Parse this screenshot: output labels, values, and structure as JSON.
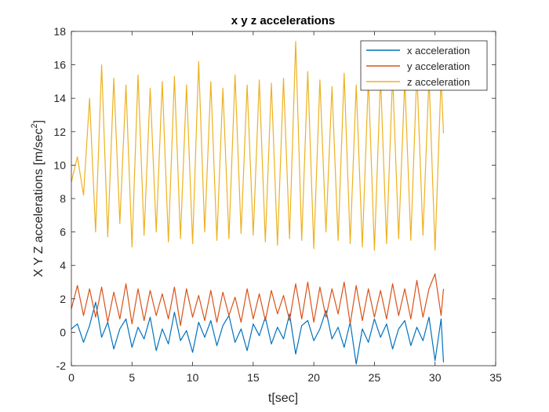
{
  "chart_data": {
    "type": "line",
    "title": "x y z accelerations",
    "xlabel": "t[sec]",
    "ylabel_main": "X  Y  Z  accelerations  [m/sec",
    "ylabel_sup": "2",
    "ylabel_close": "]",
    "xlim": [
      0,
      35
    ],
    "ylim": [
      -2,
      18
    ],
    "xticks": [
      "0",
      "5",
      "10",
      "15",
      "20",
      "25",
      "30",
      "35"
    ],
    "yticks": [
      "-2",
      "0",
      "2",
      "4",
      "6",
      "8",
      "10",
      "12",
      "14",
      "16",
      "18"
    ],
    "grid": false,
    "legend_position": "top-right",
    "t_end": 30.7,
    "series": [
      {
        "name": "x acceleration",
        "color": "#0072BD",
        "x": [
          0,
          0.5,
          1,
          1.5,
          2,
          2.5,
          3,
          3.5,
          4,
          4.5,
          5,
          5.5,
          6,
          6.5,
          7,
          7.5,
          8,
          8.5,
          9,
          9.5,
          10,
          10.5,
          11,
          11.5,
          12,
          12.5,
          13,
          13.5,
          14,
          14.5,
          15,
          15.5,
          16,
          16.5,
          17,
          17.5,
          18,
          18.5,
          19,
          19.5,
          20,
          20.5,
          21,
          21.5,
          22,
          22.5,
          23,
          23.5,
          24,
          24.5,
          25,
          25.5,
          26,
          26.5,
          27,
          27.5,
          28,
          28.5,
          29,
          29.5,
          30,
          30.5,
          30.7
        ],
        "y": [
          0.2,
          0.5,
          -0.6,
          0.4,
          1.8,
          -0.3,
          0.6,
          -1.0,
          0.2,
          0.8,
          -0.9,
          0.3,
          -0.4,
          0.9,
          -1.1,
          0.2,
          -0.7,
          1.2,
          -0.5,
          0.1,
          -1.2,
          0.6,
          -0.3,
          0.7,
          -0.8,
          0.4,
          1.0,
          -0.6,
          0.2,
          -1.1,
          0.5,
          -0.2,
          0.9,
          -0.7,
          0.3,
          -0.4,
          1.1,
          -1.3,
          0.4,
          0.7,
          -0.5,
          0.2,
          1.3,
          -0.4,
          0.3,
          -0.9,
          0.6,
          -1.9,
          0.2,
          -0.6,
          0.8,
          -0.3,
          0.5,
          -1.0,
          0.2,
          0.7,
          -0.8,
          0.3,
          -0.5,
          0.9,
          -1.7,
          0.8,
          -1.8
        ]
      },
      {
        "name": "y acceleration",
        "color": "#D95319",
        "x": [
          0,
          0.5,
          1,
          1.5,
          2,
          2.5,
          3,
          3.5,
          4,
          4.5,
          5,
          5.5,
          6,
          6.5,
          7,
          7.5,
          8,
          8.5,
          9,
          9.5,
          10,
          10.5,
          11,
          11.5,
          12,
          12.5,
          13,
          13.5,
          14,
          14.5,
          15,
          15.5,
          16,
          16.5,
          17,
          17.5,
          18,
          18.5,
          19,
          19.5,
          20,
          20.5,
          21,
          21.5,
          22,
          22.5,
          23,
          23.5,
          24,
          24.5,
          25,
          25.5,
          26,
          26.5,
          27,
          27.5,
          28,
          28.5,
          29,
          29.5,
          30,
          30.5,
          30.7
        ],
        "y": [
          1.4,
          2.8,
          1.0,
          2.6,
          0.9,
          2.7,
          0.6,
          2.4,
          0.8,
          2.9,
          0.5,
          2.6,
          0.7,
          2.5,
          1.0,
          2.3,
          0.8,
          2.7,
          0.4,
          2.6,
          0.9,
          2.2,
          0.7,
          2.5,
          0.6,
          2.4,
          1.0,
          2.1,
          0.6,
          2.6,
          0.8,
          2.3,
          0.7,
          2.5,
          1.1,
          2.2,
          0.7,
          2.9,
          0.8,
          3.0,
          0.6,
          2.7,
          0.9,
          2.6,
          1.1,
          3.0,
          0.5,
          2.8,
          0.7,
          2.6,
          0.9,
          2.5,
          0.8,
          2.9,
          1.0,
          2.6,
          0.8,
          3.1,
          0.9,
          2.6,
          3.5,
          1.0,
          2.6
        ]
      },
      {
        "name": "z acceleration",
        "color": "#EDB120",
        "x": [
          0,
          0.5,
          1,
          1.5,
          2,
          2.5,
          3,
          3.5,
          4,
          4.5,
          5,
          5.5,
          6,
          6.5,
          7,
          7.5,
          8,
          8.5,
          9,
          9.5,
          10,
          10.5,
          11,
          11.5,
          12,
          12.5,
          13,
          13.5,
          14,
          14.5,
          15,
          15.5,
          16,
          16.5,
          17,
          17.5,
          18,
          18.5,
          19,
          19.5,
          20,
          20.5,
          21,
          21.5,
          22,
          22.5,
          23,
          23.5,
          24,
          24.5,
          25,
          25.5,
          26,
          26.5,
          27,
          27.5,
          28,
          28.5,
          29,
          29.5,
          30,
          30.5,
          30.7
        ],
        "y": [
          9.0,
          10.5,
          8.2,
          14.0,
          6.0,
          16.0,
          5.7,
          15.2,
          6.5,
          14.8,
          5.1,
          15.4,
          5.8,
          14.6,
          6.0,
          15.0,
          5.4,
          15.3,
          5.6,
          14.8,
          5.3,
          16.2,
          6.0,
          15.0,
          5.5,
          14.6,
          5.6,
          15.4,
          5.9,
          14.8,
          5.8,
          15.1,
          5.4,
          14.9,
          5.2,
          15.2,
          5.6,
          17.4,
          5.5,
          15.6,
          5.0,
          15.1,
          6.0,
          14.7,
          5.5,
          15.5,
          5.3,
          14.8,
          5.1,
          15.2,
          4.9,
          15.3,
          5.3,
          15.4,
          5.6,
          15.1,
          5.5,
          15.6,
          5.8,
          15.3,
          4.9,
          15.2,
          11.9
        ]
      }
    ]
  }
}
